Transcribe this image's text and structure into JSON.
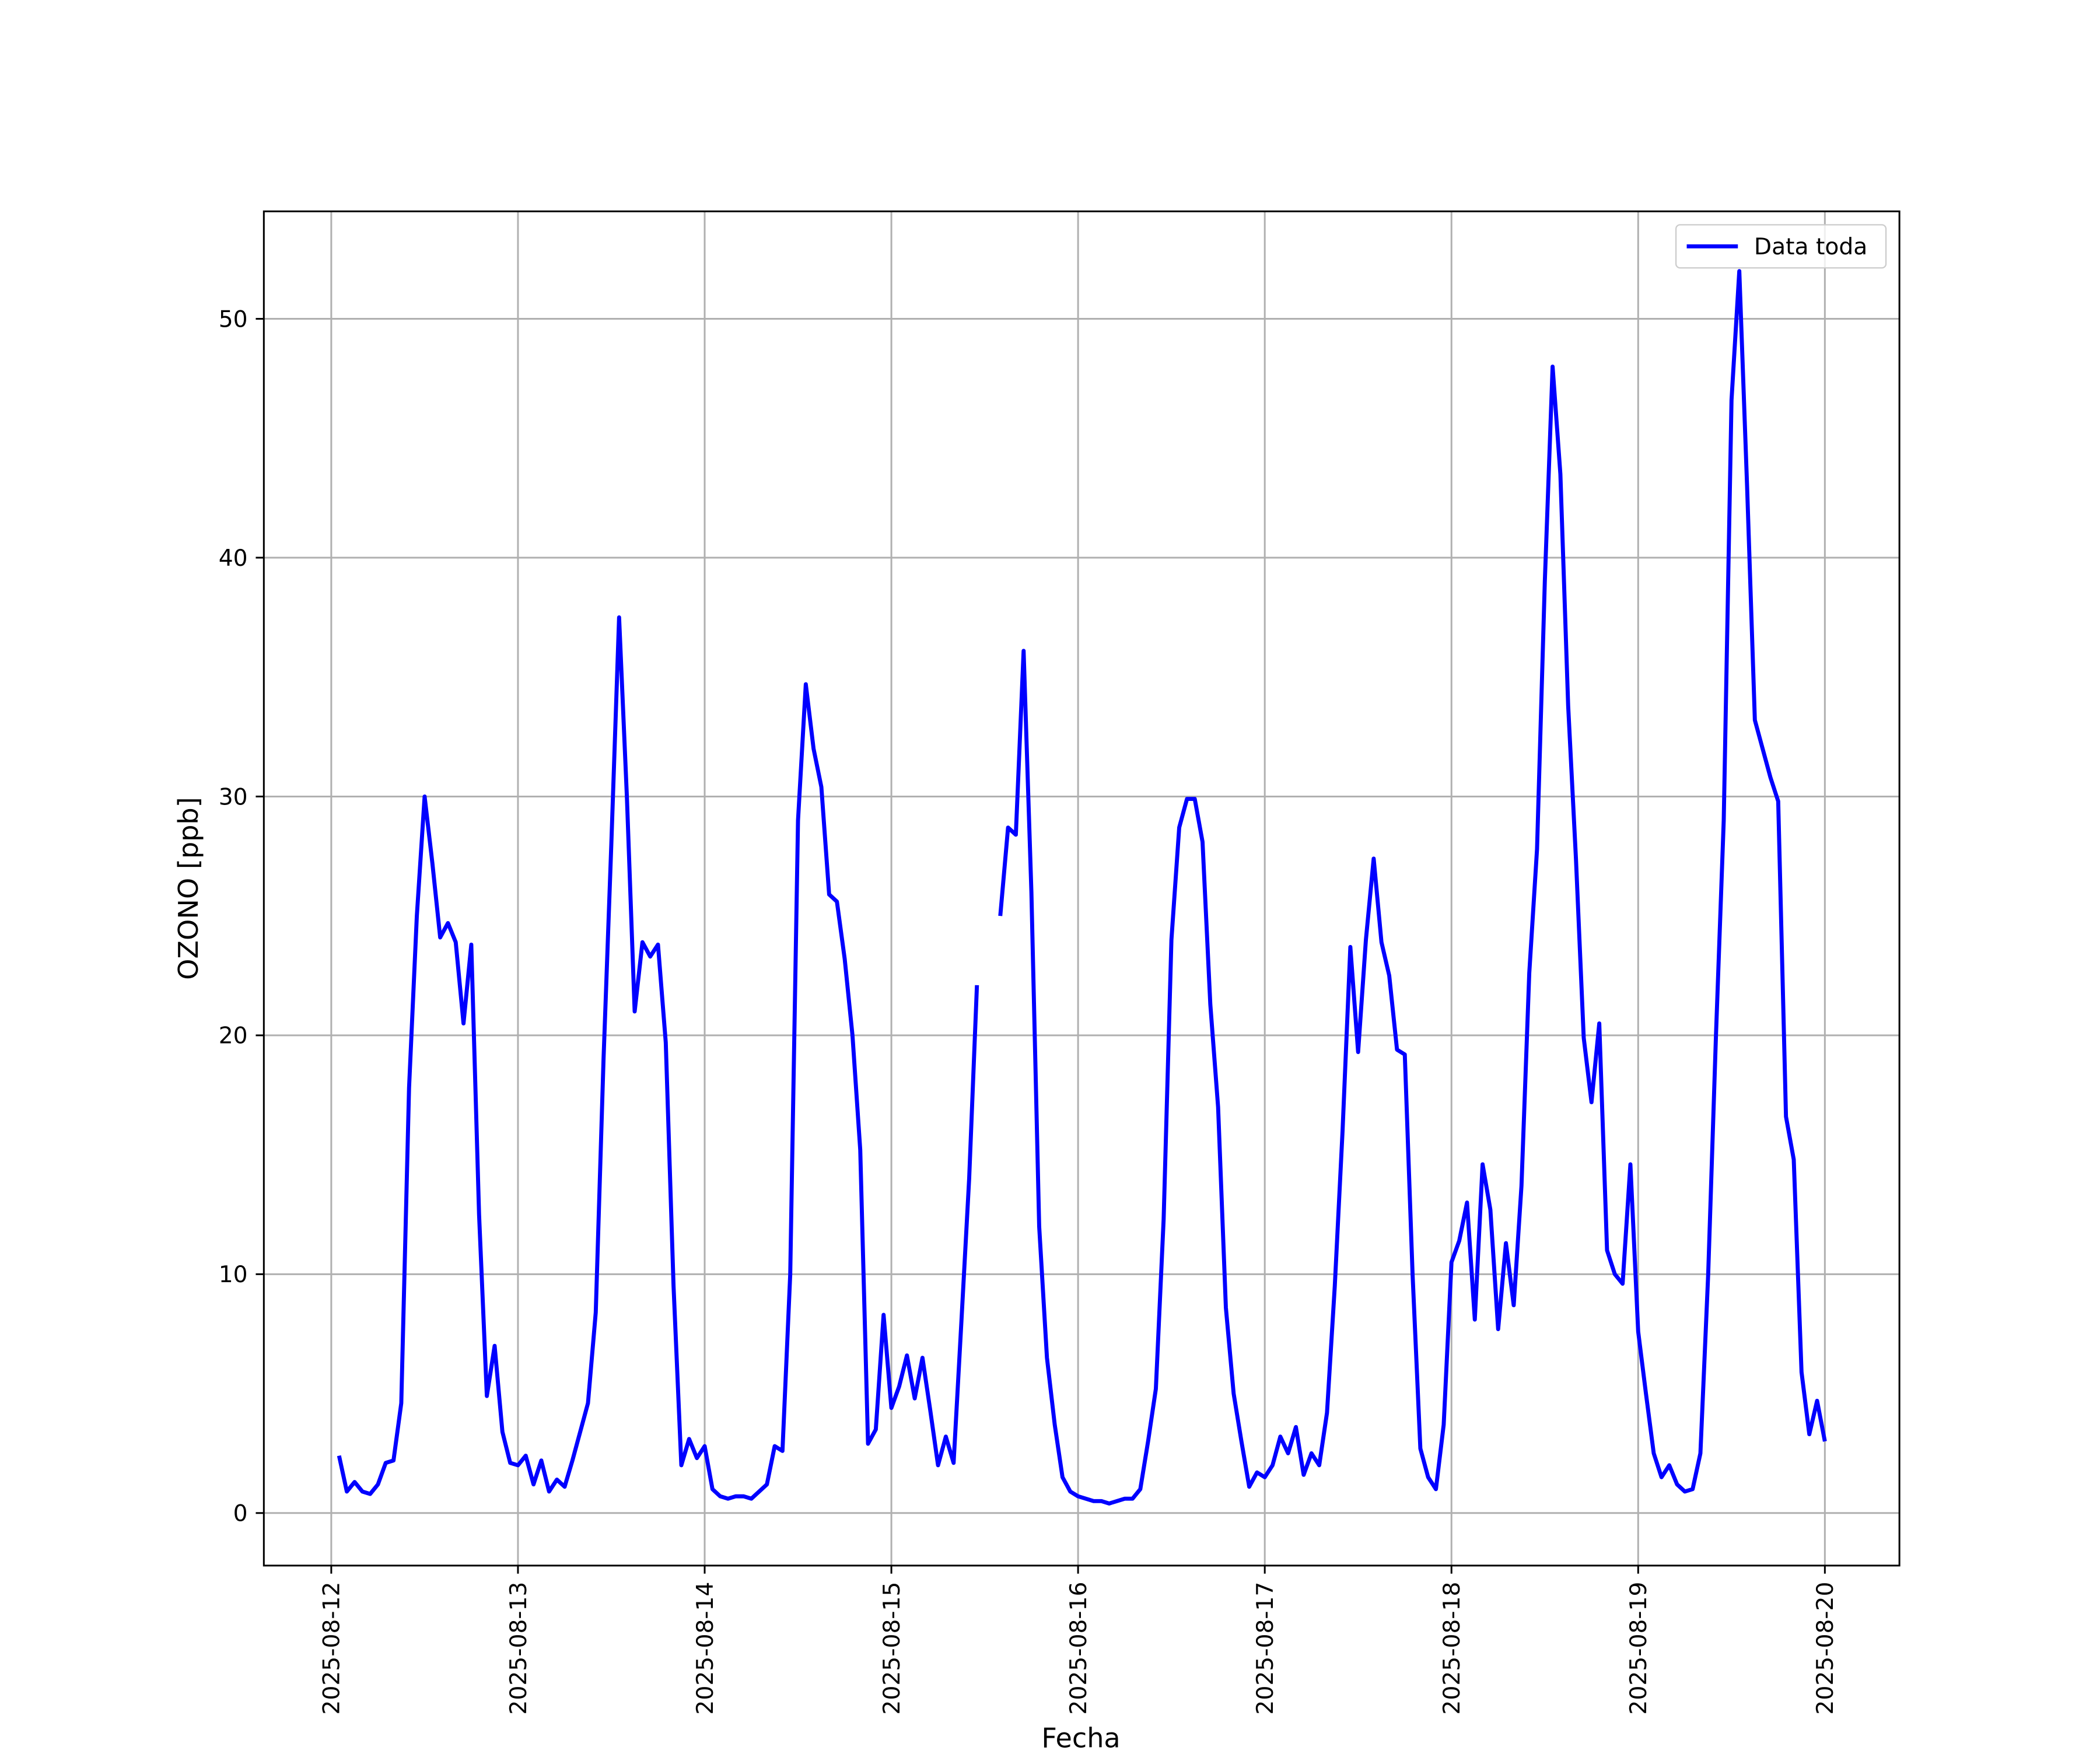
{
  "chart_data": {
    "type": "line",
    "xlabel": "Fecha",
    "ylabel": "OZONO [ppb]",
    "xlim": [
      "2025-08-11T15:20",
      "2025-08-20T09:35"
    ],
    "xticks": [
      "2025-08-12",
      "2025-08-13",
      "2025-08-14",
      "2025-08-15",
      "2025-08-16",
      "2025-08-17",
      "2025-08-18",
      "2025-08-19",
      "2025-08-20"
    ],
    "ylim": [
      -2.2,
      54.5
    ],
    "yticks": [
      0,
      10,
      20,
      30,
      40,
      50
    ],
    "grid": true,
    "legend": "upper right",
    "x": [
      "2025-08-12T01:00",
      "2025-08-12T02:00",
      "2025-08-12T03:00",
      "2025-08-12T04:00",
      "2025-08-12T05:00",
      "2025-08-12T06:00",
      "2025-08-12T07:00",
      "2025-08-12T08:00",
      "2025-08-12T09:00",
      "2025-08-12T10:00",
      "2025-08-12T11:00",
      "2025-08-12T12:00",
      "2025-08-12T13:00",
      "2025-08-12T14:00",
      "2025-08-12T15:00",
      "2025-08-12T16:00",
      "2025-08-12T17:00",
      "2025-08-12T18:00",
      "2025-08-12T19:00",
      "2025-08-12T20:00",
      "2025-08-12T21:00",
      "2025-08-12T22:00",
      "2025-08-12T23:00",
      "2025-08-13T00:00",
      "2025-08-13T01:00",
      "2025-08-13T02:00",
      "2025-08-13T03:00",
      "2025-08-13T04:00",
      "2025-08-13T05:00",
      "2025-08-13T06:00",
      "2025-08-13T07:00",
      "2025-08-13T08:00",
      "2025-08-13T09:00",
      "2025-08-13T10:00",
      "2025-08-13T11:00",
      "2025-08-13T12:00",
      "2025-08-13T13:00",
      "2025-08-13T14:00",
      "2025-08-13T15:00",
      "2025-08-13T16:00",
      "2025-08-13T17:00",
      "2025-08-13T18:00",
      "2025-08-13T19:00",
      "2025-08-13T20:00",
      "2025-08-13T21:00",
      "2025-08-13T22:00",
      "2025-08-13T23:00",
      "2025-08-14T00:00",
      "2025-08-14T01:00",
      "2025-08-14T02:00",
      "2025-08-14T03:00",
      "2025-08-14T04:00",
      "2025-08-14T05:00",
      "2025-08-14T06:00",
      "2025-08-14T07:00",
      "2025-08-14T08:00",
      "2025-08-14T09:00",
      "2025-08-14T10:00",
      "2025-08-14T11:00",
      "2025-08-14T12:00",
      "2025-08-14T13:00",
      "2025-08-14T14:00",
      "2025-08-14T15:00",
      "2025-08-14T16:00",
      "2025-08-14T17:00",
      "2025-08-14T18:00",
      "2025-08-14T19:00",
      "2025-08-14T20:00",
      "2025-08-14T21:00",
      "2025-08-14T22:00",
      "2025-08-14T23:00",
      "2025-08-15T00:00",
      "2025-08-15T01:00",
      "2025-08-15T02:00",
      "2025-08-15T03:00",
      "2025-08-15T04:00",
      "2025-08-15T05:00",
      "2025-08-15T06:00",
      "2025-08-15T07:00",
      "2025-08-15T08:00",
      "2025-08-15T09:00",
      "2025-08-15T10:00",
      "2025-08-15T11:00",
      "2025-08-15T12:00",
      "2025-08-15T13:00",
      "2025-08-15T14:00",
      "2025-08-15T15:00",
      "2025-08-15T16:00",
      "2025-08-15T17:00",
      "2025-08-15T18:00",
      "2025-08-15T19:00",
      "2025-08-15T20:00",
      "2025-08-15T21:00",
      "2025-08-15T22:00",
      "2025-08-15T23:00",
      "2025-08-16T00:00",
      "2025-08-16T01:00",
      "2025-08-16T02:00",
      "2025-08-16T03:00",
      "2025-08-16T04:00",
      "2025-08-16T05:00",
      "2025-08-16T06:00",
      "2025-08-16T07:00",
      "2025-08-16T08:00",
      "2025-08-16T09:00",
      "2025-08-16T10:00",
      "2025-08-16T11:00",
      "2025-08-16T12:00",
      "2025-08-16T13:00",
      "2025-08-16T14:00",
      "2025-08-16T15:00",
      "2025-08-16T16:00",
      "2025-08-16T17:00",
      "2025-08-16T18:00",
      "2025-08-16T19:00",
      "2025-08-16T20:00",
      "2025-08-16T21:00",
      "2025-08-16T22:00",
      "2025-08-16T23:00",
      "2025-08-17T00:00",
      "2025-08-17T01:00",
      "2025-08-17T02:00",
      "2025-08-17T03:00",
      "2025-08-17T04:00",
      "2025-08-17T05:00",
      "2025-08-17T06:00",
      "2025-08-17T07:00",
      "2025-08-17T08:00",
      "2025-08-17T09:00",
      "2025-08-17T10:00",
      "2025-08-17T11:00",
      "2025-08-17T12:00",
      "2025-08-17T13:00",
      "2025-08-17T14:00",
      "2025-08-17T15:00",
      "2025-08-17T16:00",
      "2025-08-17T17:00",
      "2025-08-17T18:00",
      "2025-08-17T19:00",
      "2025-08-17T20:00",
      "2025-08-17T21:00",
      "2025-08-17T22:00",
      "2025-08-17T23:00",
      "2025-08-18T00:00",
      "2025-08-18T01:00",
      "2025-08-18T02:00",
      "2025-08-18T03:00",
      "2025-08-18T04:00",
      "2025-08-18T05:00",
      "2025-08-18T06:00",
      "2025-08-18T07:00",
      "2025-08-18T08:00",
      "2025-08-18T09:00",
      "2025-08-18T10:00",
      "2025-08-18T11:00",
      "2025-08-18T12:00",
      "2025-08-18T13:00",
      "2025-08-18T14:00",
      "2025-08-18T15:00",
      "2025-08-18T16:00",
      "2025-08-18T17:00",
      "2025-08-18T18:00",
      "2025-08-18T19:00",
      "2025-08-18T20:00",
      "2025-08-18T21:00",
      "2025-08-18T22:00",
      "2025-08-18T23:00",
      "2025-08-19T00:00",
      "2025-08-19T01:00",
      "2025-08-19T02:00",
      "2025-08-19T03:00",
      "2025-08-19T04:00",
      "2025-08-19T05:00",
      "2025-08-19T06:00",
      "2025-08-19T07:00",
      "2025-08-19T08:00",
      "2025-08-19T09:00",
      "2025-08-19T10:00",
      "2025-08-19T11:00",
      "2025-08-19T12:00",
      "2025-08-19T13:00",
      "2025-08-19T14:00",
      "2025-08-19T15:00",
      "2025-08-19T16:00",
      "2025-08-19T17:00",
      "2025-08-19T18:00",
      "2025-08-19T19:00",
      "2025-08-19T20:00",
      "2025-08-19T21:00",
      "2025-08-19T22:00",
      "2025-08-19T23:00",
      "2025-08-20T00:00"
    ],
    "series": [
      {
        "name": "Data toda",
        "color": "#0000ff",
        "values": [
          2.4,
          0.9,
          1.3,
          0.9,
          0.8,
          1.2,
          2.1,
          2.2,
          4.6,
          17.8,
          25,
          30,
          27.2,
          24.1,
          24.7,
          23.9,
          20.5,
          23.8,
          12.5,
          4.9,
          7.0,
          3.4,
          2.1,
          2.0,
          2.4,
          1.2,
          2.2,
          0.9,
          1.4,
          1.1,
          2.2,
          3.4,
          4.6,
          8.4,
          19,
          28,
          37.5,
          30,
          21,
          23.9,
          23.3,
          23.8,
          19.7,
          9.5,
          2.0,
          3.1,
          2.3,
          2.8,
          1.0,
          0.7,
          0.6,
          0.7,
          0.7,
          0.6,
          0.9,
          1.2,
          2.8,
          2.6,
          10,
          29,
          34.7,
          32,
          30.4,
          25.9,
          25.6,
          23.2,
          20,
          15.2,
          2.9,
          3.5,
          8.3,
          4.4,
          5.3,
          6.6,
          4.8,
          6.5,
          4.3,
          2.0,
          3.2,
          2.1,
          8,
          14,
          22.1,
          null,
          null,
          25.0,
          28.7,
          28.4,
          36.1,
          26,
          12,
          6.5,
          3.7,
          1.5,
          0.9,
          0.7,
          0.6,
          0.5,
          0.5,
          0.4,
          0.5,
          0.6,
          0.6,
          1.0,
          3,
          5.2,
          12.3,
          24,
          28.7,
          29.9,
          29.9,
          28.1,
          21.3,
          17,
          8.6,
          5.0,
          3,
          1.1,
          1.7,
          1.5,
          2.0,
          3.2,
          2.5,
          3.6,
          1.6,
          2.5,
          2.0,
          4.2,
          9.5,
          16,
          23.7,
          19.3,
          24,
          27.4,
          23.9,
          22.5,
          19.4,
          19.2,
          10,
          2.7,
          1.5,
          1.0,
          3.7,
          10.5,
          11.4,
          13,
          8.1,
          14.6,
          12.7,
          7.7,
          11.3,
          8.7,
          13.7,
          22.6,
          27.8,
          39,
          48,
          43.5,
          33.8,
          27.4,
          19.9,
          17.2,
          20.5,
          11,
          10,
          9.6,
          14.6,
          7.6,
          5,
          2.5,
          1.5,
          2.0,
          1.2,
          0.9,
          1.0,
          2.5,
          10,
          20,
          29,
          46.6,
          52,
          43,
          33.2,
          32,
          30.8,
          29.8,
          16.6,
          14.8,
          5.9,
          3.3,
          4.7,
          3.0
        ]
      }
    ]
  }
}
